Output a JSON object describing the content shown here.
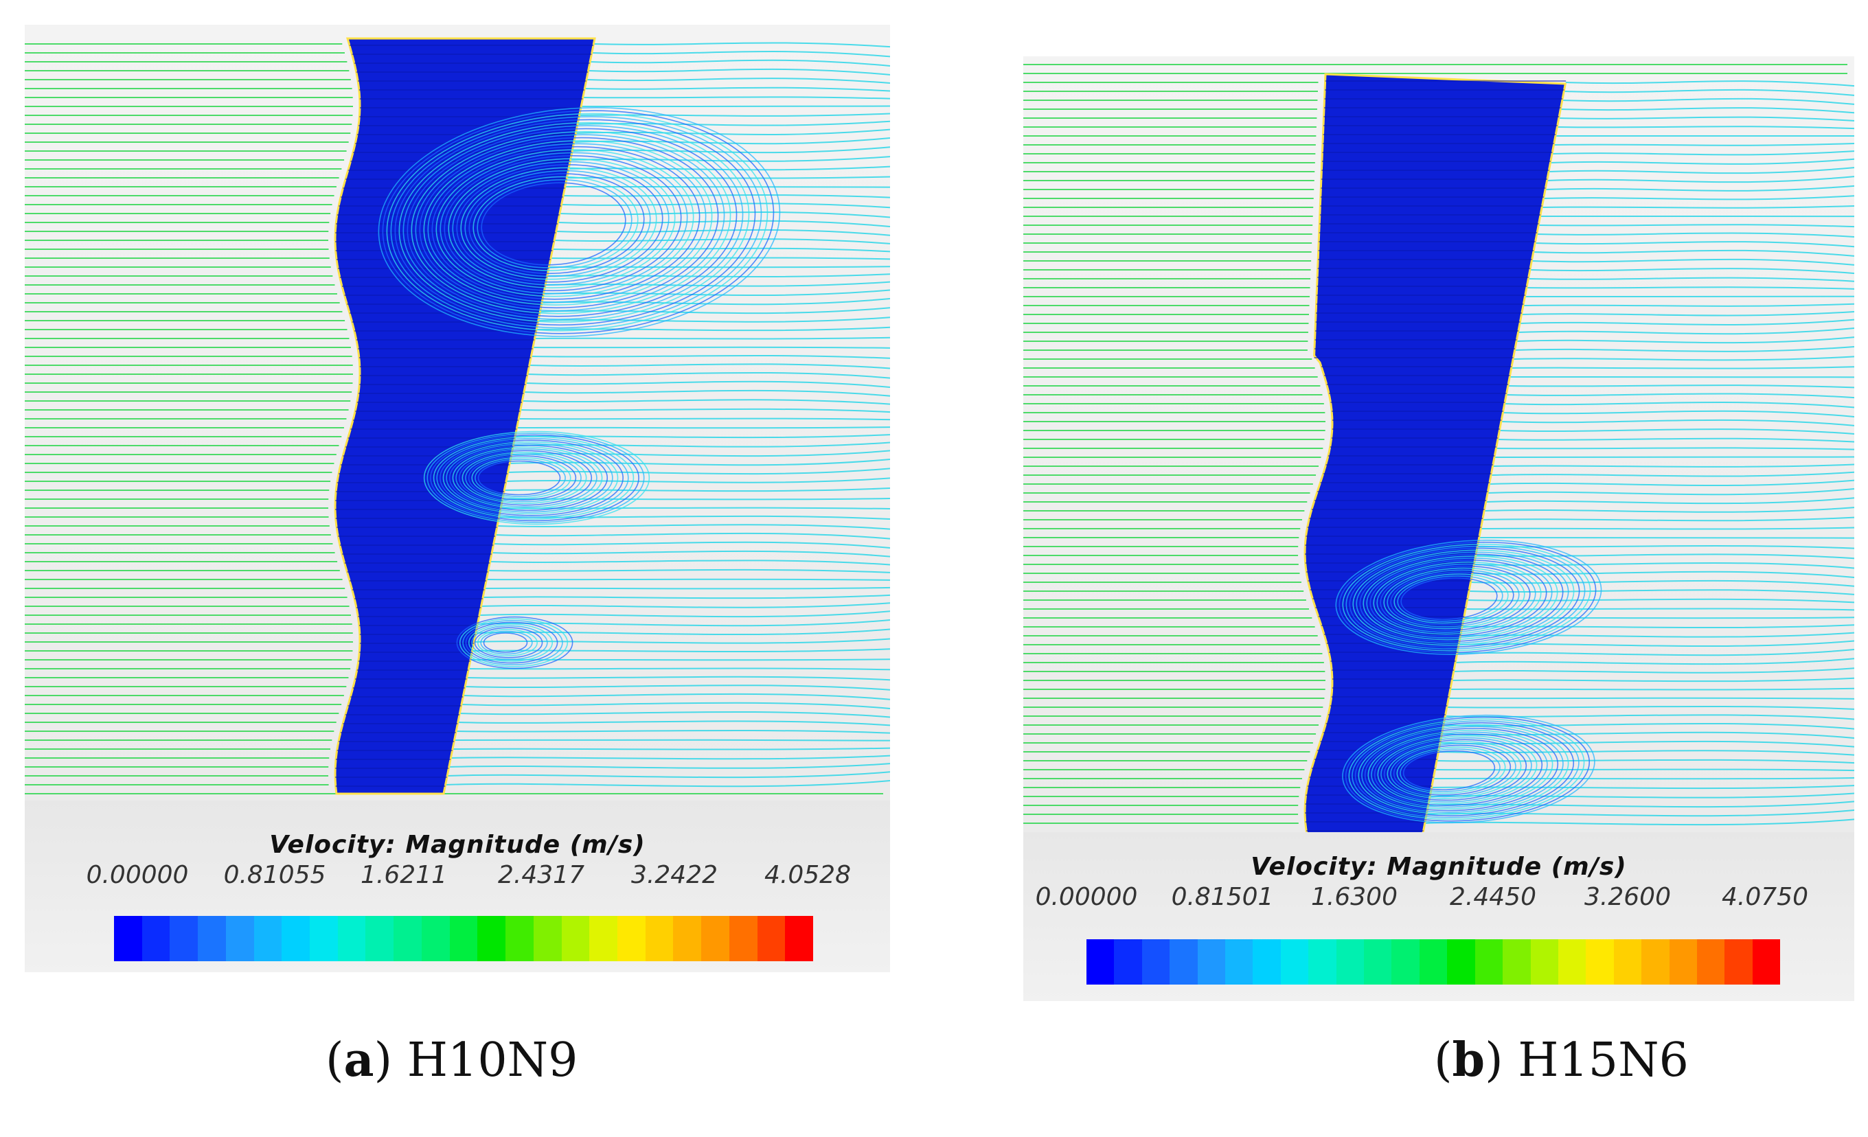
{
  "panels": [
    {
      "id": "a",
      "legend_title": "Velocity: Magnitude (m/s)",
      "tick_labels": [
        "0.00000",
        "0.81055",
        "1.6211",
        "2.4317",
        "3.2422",
        "4.0528"
      ],
      "caption_letter": "a",
      "caption_name": "H10N9"
    },
    {
      "id": "b",
      "legend_title": "Velocity: Magnitude (m/s)",
      "tick_labels": [
        "0.00000",
        "0.81501",
        "1.6300",
        "2.4450",
        "3.2600",
        "4.0750"
      ],
      "caption_letter": "b",
      "caption_name": "H15N6"
    }
  ],
  "colormap": [
    "#0000ff",
    "#0a2cff",
    "#1450ff",
    "#1a74ff",
    "#1e98ff",
    "#12b6ff",
    "#00d0ff",
    "#00e6f0",
    "#00f0d0",
    "#00f0b0",
    "#00f090",
    "#00f070",
    "#00ee40",
    "#00e600",
    "#40ec00",
    "#80f000",
    "#b0f400",
    "#e0f400",
    "#ffe800",
    "#ffd000",
    "#ffb400",
    "#ff9800",
    "#ff7000",
    "#ff4000",
    "#ff0000"
  ],
  "colors": {
    "blade": "#0c1fd6",
    "freestream": "#3ad85a",
    "wake": "#2cd6e8"
  }
}
